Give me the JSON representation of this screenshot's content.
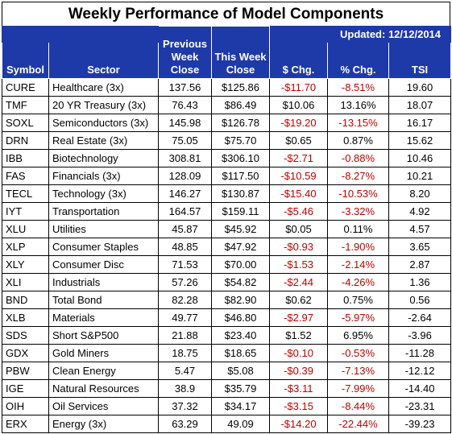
{
  "title": "Weekly Performance of Model Components",
  "updated": "Updated:  12/12/2014",
  "headers": {
    "symbol": "Symbol",
    "sector": "Sector",
    "prev_close": "Previous Week Close",
    "this_close": "This Week Close",
    "dollar_chg": "$ Chg.",
    "pct_chg": "% Chg.",
    "tsi": "TSI"
  },
  "colors": {
    "header_bg": "#1e3aa8",
    "negative": "#c00000"
  },
  "rows": [
    {
      "symbol": "CURE",
      "sector": "Healthcare  (3x)",
      "prev": "137.56",
      "this": "$125.86",
      "dchg": "-$11.70",
      "pchg": "-8.51%",
      "tsi": "19.60"
    },
    {
      "symbol": "TMF",
      "sector": "20 YR Treasury  (3x)",
      "prev": "76.43",
      "this": "$86.49",
      "dchg": "$10.06",
      "pchg": "13.16%",
      "tsi": "18.07"
    },
    {
      "symbol": "SOXL",
      "sector": "Semiconductors  (3x)",
      "prev": "145.98",
      "this": "$126.78",
      "dchg": "-$19.20",
      "pchg": "-13.15%",
      "tsi": "16.17"
    },
    {
      "symbol": "DRN",
      "sector": "Real Estate  (3x)",
      "prev": "75.05",
      "this": "$75.70",
      "dchg": "$0.65",
      "pchg": "0.87%",
      "tsi": "15.62"
    },
    {
      "symbol": "IBB",
      "sector": "Biotechnology",
      "prev": "308.81",
      "this": "$306.10",
      "dchg": "-$2.71",
      "pchg": "-0.88%",
      "tsi": "10.46"
    },
    {
      "symbol": "FAS",
      "sector": "Financials  (3x)",
      "prev": "128.09",
      "this": "$117.50",
      "dchg": "-$10.59",
      "pchg": "-8.27%",
      "tsi": "10.21"
    },
    {
      "symbol": "TECL",
      "sector": "Technology  (3x)",
      "prev": "146.27",
      "this": "$130.87",
      "dchg": "-$15.40",
      "pchg": "-10.53%",
      "tsi": "8.20"
    },
    {
      "symbol": "IYT",
      "sector": "Transportation",
      "prev": "164.57",
      "this": "$159.11",
      "dchg": "-$5.46",
      "pchg": "-3.32%",
      "tsi": "4.92"
    },
    {
      "symbol": "XLU",
      "sector": "Utilities",
      "prev": "45.87",
      "this": "$45.92",
      "dchg": "$0.05",
      "pchg": "0.11%",
      "tsi": "4.57"
    },
    {
      "symbol": "XLP",
      "sector": "Consumer Staples",
      "prev": "48.85",
      "this": "$47.92",
      "dchg": "-$0.93",
      "pchg": "-1.90%",
      "tsi": "3.65"
    },
    {
      "symbol": "XLY",
      "sector": "Consumer Disc",
      "prev": "71.53",
      "this": "$70.00",
      "dchg": "-$1.53",
      "pchg": "-2.14%",
      "tsi": "2.87"
    },
    {
      "symbol": "XLI",
      "sector": "Industrials",
      "prev": "57.26",
      "this": "$54.82",
      "dchg": "-$2.44",
      "pchg": "-4.26%",
      "tsi": "1.36"
    },
    {
      "symbol": "BND",
      "sector": "Total Bond",
      "prev": "82.28",
      "this": "$82.90",
      "dchg": "$0.62",
      "pchg": "0.75%",
      "tsi": "0.56"
    },
    {
      "symbol": "XLB",
      "sector": "Materials",
      "prev": "49.77",
      "this": "$46.80",
      "dchg": "-$2.97",
      "pchg": "-5.97%",
      "tsi": "-2.64"
    },
    {
      "symbol": "SDS",
      "sector": "Short S&P500",
      "prev": "21.88",
      "this": "$23.40",
      "dchg": "$1.52",
      "pchg": "6.95%",
      "tsi": "-3.96"
    },
    {
      "symbol": "GDX",
      "sector": "Gold Miners",
      "prev": "18.75",
      "this": "$18.65",
      "dchg": "-$0.10",
      "pchg": "-0.53%",
      "tsi": "-11.28"
    },
    {
      "symbol": "PBW",
      "sector": "Clean Energy",
      "prev": "5.47",
      "this": "$5.08",
      "dchg": "-$0.39",
      "pchg": "-7.13%",
      "tsi": "-12.12"
    },
    {
      "symbol": "IGE",
      "sector": "Natural Resources",
      "prev": "38.9",
      "this": "$35.79",
      "dchg": "-$3.11",
      "pchg": "-7.99%",
      "tsi": "-14.40"
    },
    {
      "symbol": "OIH",
      "sector": "Oil Services",
      "prev": "37.32",
      "this": "$34.17",
      "dchg": "-$3.15",
      "pchg": "-8.44%",
      "tsi": "-23.31"
    },
    {
      "symbol": "ERX",
      "sector": "Energy (3x)",
      "prev": "63.29",
      "this": "49.09",
      "dchg": "-$14.20",
      "pchg": "-22.44%",
      "tsi": "-39.23"
    }
  ]
}
